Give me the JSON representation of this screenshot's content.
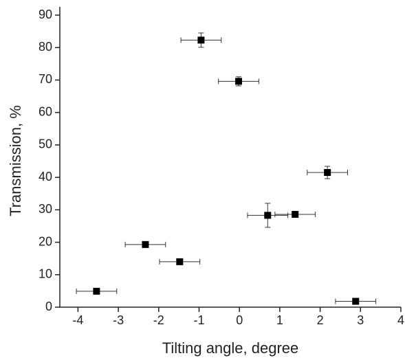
{
  "chart_data": {
    "type": "scatter",
    "x_label": "Tilting angle, degree",
    "y_label": "Transmission, %",
    "x": [
      -3.54,
      -2.33,
      -1.48,
      -0.95,
      -0.02,
      0.7,
      1.38,
      2.18,
      2.88
    ],
    "y": [
      4.9,
      19.3,
      14.0,
      82.3,
      69.6,
      28.3,
      28.6,
      41.5,
      1.8
    ],
    "x_err": [
      0.5,
      0.5,
      0.5,
      0.5,
      0.5,
      0.5,
      0.5,
      0.5,
      0.5
    ],
    "y_err": [
      0.5,
      0.5,
      0.5,
      2.2,
      1.4,
      3.7,
      0.7,
      1.9,
      0.5
    ],
    "color": "#000000",
    "xlim": [
      -4.45,
      4
    ],
    "ylim": [
      0,
      90
    ],
    "xticks": [
      -4,
      -3,
      -2,
      -1,
      0,
      1,
      2,
      3,
      4
    ],
    "yticks": [
      0,
      10,
      20,
      30,
      40,
      50,
      60,
      70,
      80,
      90
    ]
  }
}
